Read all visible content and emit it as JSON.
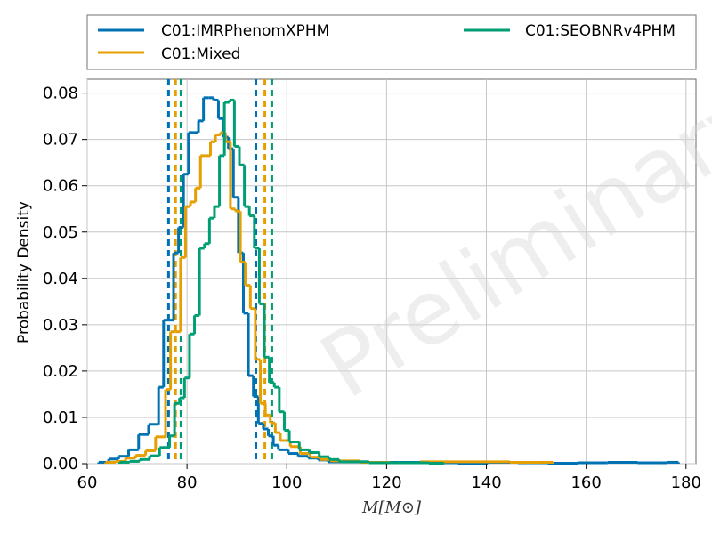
{
  "colors": {
    "imr": "#0072B2",
    "mixed": "#E69F00",
    "seob": "#009E73",
    "grid": "#c6c6c6"
  },
  "chart_data": {
    "type": "histogram",
    "xlabel": "M[M⊙]",
    "ylabel": "Probability Density",
    "xlim": [
      60,
      182
    ],
    "ylim": [
      0,
      0.083
    ],
    "xticks": [
      60,
      80,
      100,
      120,
      140,
      160,
      180
    ],
    "yticks": [
      0,
      0.01,
      0.02,
      0.03,
      0.04,
      0.05,
      0.06,
      0.07,
      0.08
    ],
    "grid": true,
    "legend_position": "top",
    "watermark": "Preliminary",
    "series": [
      {
        "name": "C01:IMRPhenomXPHM",
        "color_key": "imr",
        "edges": [
          62.3,
          64.3,
          66.3,
          68.3,
          70.3,
          72.3,
          74.3,
          75.3,
          76.3,
          77.3,
          78.3,
          79.3,
          80.3,
          81.3,
          82.3,
          83.3,
          84.3,
          85.3,
          86.3,
          87.3,
          88.3,
          89.3,
          90.3,
          91.3,
          92.3,
          93.3,
          94.3,
          95.3,
          96.3,
          97.3,
          98.3,
          100.3,
          102.3,
          104.3,
          106.3,
          108.3,
          110.3,
          116.3,
          122.3,
          128.3,
          134.3,
          140.3,
          146.3,
          152.3,
          158.3,
          164.3,
          170.3,
          176.3,
          178.5
        ],
        "values": [
          0.0003,
          0.001,
          0.0016,
          0.003,
          0.0063,
          0.0085,
          0.0165,
          0.031,
          0.031,
          0.0455,
          0.051,
          0.0625,
          0.0715,
          0.0715,
          0.074,
          0.079,
          0.079,
          0.0785,
          0.0745,
          0.0705,
          0.068,
          0.0575,
          0.0455,
          0.0325,
          0.019,
          0.0145,
          0.0087,
          0.0075,
          0.006,
          0.004,
          0.003,
          0.0022,
          0.0016,
          0.0012,
          0.0008,
          0.0004,
          0.0004,
          0.0003,
          0.0003,
          0.0002,
          0.0001,
          0.0003,
          0.0002,
          0.0001,
          0.0002,
          0.0003,
          0.0002,
          0.0003
        ]
      },
      {
        "name": "C01:Mixed",
        "color_key": "mixed",
        "edges": [
          63.7,
          65.7,
          67.7,
          69.7,
          71.7,
          73.7,
          75.7,
          76.7,
          77.7,
          78.7,
          79.7,
          80.7,
          81.7,
          82.7,
          83.7,
          84.7,
          85.7,
          86.7,
          87.7,
          88.7,
          89.7,
          90.7,
          91.7,
          92.7,
          93.7,
          94.7,
          95.7,
          96.7,
          97.7,
          98.7,
          100.7,
          102.7,
          104.7,
          106.7,
          108.7,
          114.7,
          120.7,
          126.7,
          132.7,
          138.7,
          144.7,
          150.7,
          153.3
        ],
        "values": [
          0.0003,
          0.0005,
          0.0012,
          0.0018,
          0.0028,
          0.0058,
          0.016,
          0.0285,
          0.0285,
          0.0445,
          0.0555,
          0.0565,
          0.0595,
          0.0665,
          0.0665,
          0.0695,
          0.071,
          0.0715,
          0.0695,
          0.055,
          0.0545,
          0.0435,
          0.0385,
          0.0335,
          0.0225,
          0.013,
          0.0105,
          0.0088,
          0.0067,
          0.005,
          0.0037,
          0.0022,
          0.0014,
          0.0009,
          0.0006,
          0.0003,
          0.0002,
          0.0004,
          0.0004,
          0.0004,
          0.0003,
          0.0003
        ]
      },
      {
        "name": "C01:SEOBNRv4PHM",
        "color_key": "seob",
        "edges": [
          66.5,
          68.5,
          70.5,
          72.5,
          74.5,
          76.5,
          77.5,
          78.5,
          79.5,
          80.5,
          81.5,
          82.5,
          83.5,
          84.5,
          85.5,
          86.5,
          87.5,
          88.5,
          89.5,
          90.5,
          91.5,
          92.5,
          93.5,
          94.5,
          95.5,
          96.5,
          97.5,
          98.5,
          99.5,
          100.5,
          102.5,
          104.5,
          106.5,
          108.5,
          110.5,
          116.5,
          122.5,
          128.5,
          131.5
        ],
        "values": [
          0.0003,
          0.0005,
          0.0009,
          0.0017,
          0.0035,
          0.006,
          0.013,
          0.0142,
          0.0185,
          0.028,
          0.032,
          0.0465,
          0.0475,
          0.053,
          0.0555,
          0.0665,
          0.078,
          0.0785,
          0.0685,
          0.0645,
          0.0555,
          0.0535,
          0.0465,
          0.0345,
          0.023,
          0.0175,
          0.0165,
          0.0112,
          0.0072,
          0.0047,
          0.003,
          0.0024,
          0.0015,
          0.0009,
          0.0004,
          0.0002,
          0.0002,
          0.0001
        ]
      }
    ],
    "credible_intervals": [
      {
        "series": "C01:IMRPhenomXPHM",
        "color_key": "imr",
        "lower": 76.3,
        "upper": 93.8
      },
      {
        "series": "C01:Mixed",
        "color_key": "mixed",
        "lower": 77.7,
        "upper": 95.6
      },
      {
        "series": "C01:SEOBNRv4PHM",
        "color_key": "seob",
        "lower": 78.8,
        "upper": 97.0
      }
    ]
  }
}
